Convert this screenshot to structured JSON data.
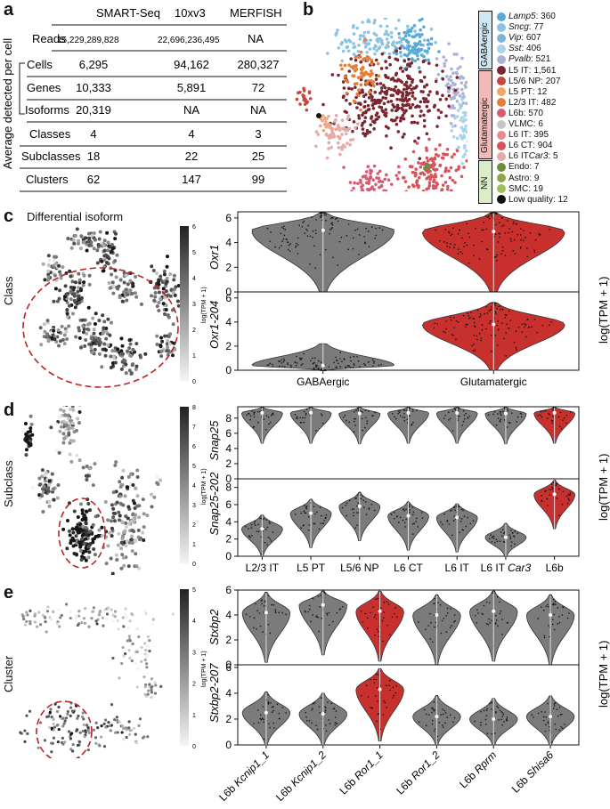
{
  "panel_labels": {
    "a": "a",
    "b": "b",
    "c": "c",
    "d": "d",
    "e": "e"
  },
  "table": {
    "columns": [
      "SMART-Seq",
      "10xv3",
      "MERFISH"
    ],
    "reads_label": "Reads",
    "reads": [
      "15,229,289,828",
      "22,696,236,495",
      "NA"
    ],
    "side_label": "Average detected per cell",
    "rows": [
      {
        "label": "Cells",
        "values": [
          "6,295",
          "94,162",
          "280,327"
        ]
      },
      {
        "label": "Genes",
        "values": [
          "10,333",
          "5,891",
          "72"
        ]
      },
      {
        "label": "Isoforms",
        "values": [
          "20,319",
          "NA",
          "NA"
        ]
      },
      {
        "label": "Classes",
        "values": [
          "4",
          "4",
          "3"
        ]
      },
      {
        "label": "Subclasses",
        "values": [
          "18",
          "22",
          "25"
        ]
      },
      {
        "label": "Clusters",
        "values": [
          "62",
          "147",
          "99"
        ]
      }
    ]
  },
  "legend": {
    "groups": [
      "GABAergic",
      "Glutamatergic",
      "NN"
    ],
    "items": [
      {
        "name": "Lamp5",
        "suffix": ": 360",
        "italic": true,
        "color": "#5aa9d6"
      },
      {
        "name": "Sncg",
        "suffix": ": 77",
        "italic": true,
        "color": "#8bc3e3"
      },
      {
        "name": "Vip",
        "suffix": ": 607",
        "italic": true,
        "color": "#7fb4d4"
      },
      {
        "name": "Sst",
        "suffix": ": 406",
        "italic": true,
        "color": "#a9d3ea"
      },
      {
        "name": "Pvalb",
        "suffix": ": 521",
        "italic": true,
        "color": "#aab2d6"
      },
      {
        "name": "L5 IT",
        "suffix": ": 1,561",
        "italic": false,
        "color": "#7b2530"
      },
      {
        "name": "L5/6 NP",
        "suffix": ": 207",
        "italic": false,
        "color": "#c9463f"
      },
      {
        "name": "L5 PT",
        "suffix": ": 12",
        "italic": false,
        "color": "#f2a66b"
      },
      {
        "name": "L2/3 IT",
        "suffix": ": 482",
        "italic": false,
        "color": "#e67e3a"
      },
      {
        "name": "L6b",
        "suffix": ": 570",
        "italic": false,
        "color": "#d95b73"
      },
      {
        "name": "VLMC",
        "suffix": ": 6",
        "italic": false,
        "color": "#c6c6c6"
      },
      {
        "name": "L6 IT",
        "suffix": ": 395",
        "italic": false,
        "color": "#e88a8f"
      },
      {
        "name": "L6 CT",
        "suffix": ": 904",
        "italic": false,
        "color": "#d9535d"
      },
      {
        "name": "L6 IT ",
        "suffix": ": 5",
        "italic": false,
        "italic_part": "Car3",
        "color": "#e6a9a9"
      },
      {
        "name": "Endo",
        "suffix": ": 7",
        "italic": false,
        "color": "#6b8e3a"
      },
      {
        "name": "Astro",
        "suffix": ": 9",
        "italic": false,
        "color": "#8aa84a"
      },
      {
        "name": "SMC",
        "suffix": ": 19",
        "italic": false,
        "color": "#9fbf5a"
      },
      {
        "name": "Low quality",
        "suffix": " : 12",
        "italic": false,
        "color": "#111111"
      }
    ]
  },
  "panel_c": {
    "title": "Differential isoform",
    "row_label": "Class",
    "colorbar": {
      "label": "log(TPM + 1)",
      "ticks": [
        "0",
        "1",
        "2",
        "3",
        "4",
        "5",
        "6"
      ]
    },
    "categories": [
      "GABAergic",
      "Glutamatergic"
    ],
    "genes": [
      "Oxr1",
      "Oxr1-204"
    ],
    "ylabel": "log(TPM + 1)"
  },
  "panel_d": {
    "row_label": "Subclass",
    "colorbar": {
      "label": "log(TPM + 1)",
      "ticks": [
        "0",
        "1",
        "2",
        "3",
        "4",
        "5",
        "6",
        "7",
        "8"
      ]
    },
    "categories": [
      "L2/3 IT",
      "L5 PT",
      "L5/6 NP",
      "L6 CT",
      "L6 IT",
      "L6 IT Car3",
      "L6b"
    ],
    "genes": [
      "Snap25",
      "Snap25-202"
    ],
    "ylabel": "log(TPM + 1)"
  },
  "panel_e": {
    "row_label": "Cluster",
    "colorbar": {
      "label": "log(TPM + 1)",
      "ticks": [
        "0",
        "1",
        "2",
        "3",
        "4",
        "5"
      ]
    },
    "categories": [
      "L6b Kcnip1_1",
      "L6b Kcnip1_2",
      "L6b Ror1_1",
      "L6b Ror1_2",
      "L6b Rprm",
      "L6b Shisa6"
    ],
    "genes": [
      "Stxbp2",
      "Stxbp2-207"
    ],
    "ylabel": "log(TPM + 1)"
  },
  "chart_data": [
    {
      "type": "violin",
      "title": "Oxr1",
      "categories": [
        "GABAergic",
        "Glutamatergic"
      ],
      "ylim": [
        0,
        6.5
      ],
      "yticks": [
        0,
        2,
        4,
        6
      ],
      "series": [
        {
          "name": "median",
          "values": [
            5.0,
            4.9
          ]
        }
      ],
      "highlight": "Glutamatergic"
    },
    {
      "type": "violin",
      "title": "Oxr1-204",
      "categories": [
        "GABAergic",
        "Glutamatergic"
      ],
      "ylim": [
        0,
        6.5
      ],
      "yticks": [
        0,
        2,
        4,
        6
      ],
      "series": [
        {
          "name": "median",
          "values": [
            0.4,
            3.8
          ]
        }
      ],
      "highlight": "Glutamatergic"
    },
    {
      "type": "violin",
      "title": "Snap25",
      "categories": [
        "L2/3 IT",
        "L5 PT",
        "L5/6 NP",
        "L6 CT",
        "L6 IT",
        "L6 IT Car3",
        "L6b"
      ],
      "ylim": [
        0,
        9.5
      ],
      "yticks": [
        0,
        2,
        4,
        6,
        8
      ],
      "series": [
        {
          "name": "median",
          "values": [
            8.7,
            8.7,
            8.6,
            8.7,
            8.7,
            8.6,
            8.7
          ]
        }
      ],
      "highlight": "L6b"
    },
    {
      "type": "violin",
      "title": "Snap25-202",
      "categories": [
        "L2/3 IT",
        "L5 PT",
        "L5/6 NP",
        "L6 CT",
        "L6 IT",
        "L6 IT Car3",
        "L6b"
      ],
      "ylim": [
        0,
        9
      ],
      "yticks": [
        0,
        2,
        4,
        6,
        8
      ],
      "series": [
        {
          "name": "median",
          "values": [
            3.2,
            5.0,
            5.8,
            4.7,
            4.5,
            2.2,
            7.2
          ]
        }
      ],
      "highlight": "L6b"
    },
    {
      "type": "violin",
      "title": "Stxbp2",
      "categories": [
        "L6b Kcnip1_1",
        "L6b Kcnip1_2",
        "L6b Ror1_1",
        "L6b Ror1_2",
        "L6b Rprm",
        "L6b Shisa6"
      ],
      "ylim": [
        0,
        6
      ],
      "yticks": [
        0,
        2,
        4,
        6
      ],
      "series": [
        {
          "name": "median",
          "values": [
            4.2,
            4.8,
            4.3,
            4.0,
            4.3,
            4.0
          ]
        }
      ],
      "highlight": "L6b Ror1_1"
    },
    {
      "type": "violin",
      "title": "Stxbp2-207",
      "categories": [
        "L6b Kcnip1_1",
        "L6b Kcnip1_2",
        "L6b Ror1_1",
        "L6b Ror1_2",
        "L6b Rprm",
        "L6b Shisa6"
      ],
      "ylim": [
        0,
        6.2
      ],
      "yticks": [
        0,
        2,
        4,
        6
      ],
      "series": [
        {
          "name": "median",
          "values": [
            2.5,
            2.4,
            4.3,
            2.2,
            2.0,
            2.2
          ]
        }
      ],
      "highlight": "L6b Ror1_1"
    }
  ]
}
